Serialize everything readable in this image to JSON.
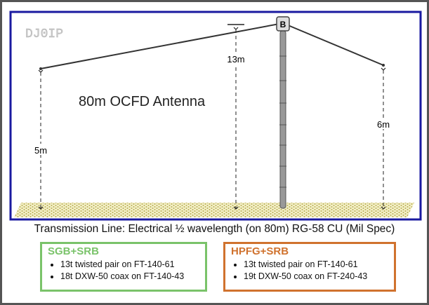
{
  "watermark": "DJ0IP",
  "title": "80m OCFD Antenna",
  "balun_label": "B",
  "heights": {
    "left": "5m",
    "center": "13m",
    "right": "6m"
  },
  "transmission_line": "Transmission Line:  Electrical ½ wavelength (on 80m) RG-58 CU (Mil Spec)",
  "colors": {
    "frame": "#1a1aa0",
    "green": "#7ac36a",
    "orange": "#d0722e",
    "ground": "#d4cc7a"
  },
  "boxes": [
    {
      "title": "SGB+SRB",
      "items": [
        "13t twisted pair on FT-140-61",
        "18t DXW-50 coax on FT-140-43"
      ]
    },
    {
      "title": "HPFG+SRB",
      "items": [
        "13t twisted pair on FT-140-61",
        "19t DXW-50 coax on FT-240-43"
      ]
    }
  ]
}
